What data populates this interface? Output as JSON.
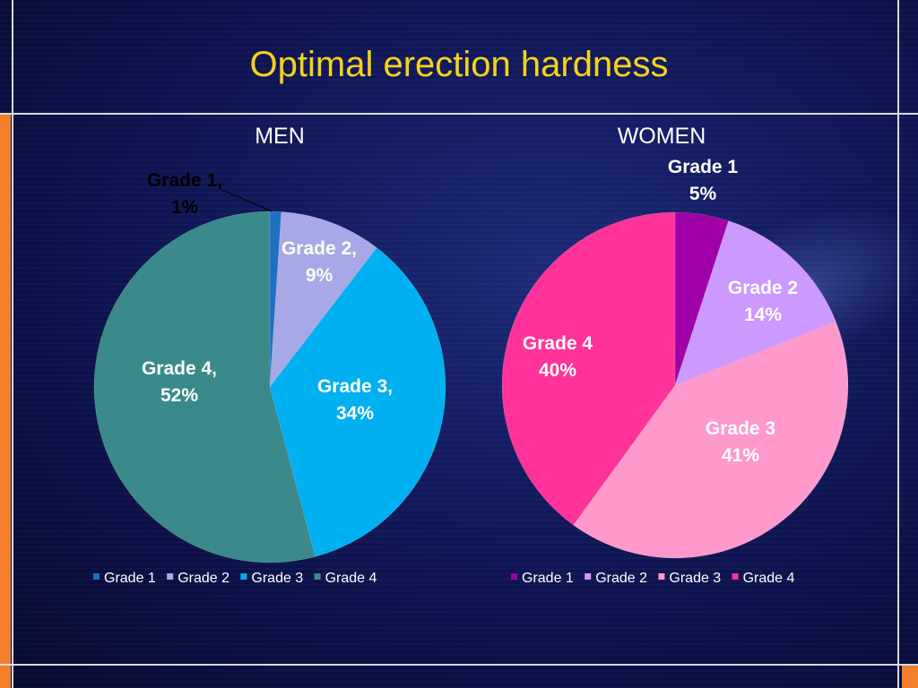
{
  "slide": {
    "title": "Optimal erection hardness"
  },
  "chart_data": [
    {
      "type": "pie",
      "title": "MEN",
      "categories": [
        "Grade 1",
        "Grade 2",
        "Grade 3",
        "Grade 4"
      ],
      "values": [
        1,
        9,
        34,
        52
      ],
      "data_labels": [
        "Grade 1,\n1%",
        "Grade 2,\n9%",
        "Grade 3,\n34%",
        "Grade 4,\n52%"
      ],
      "colors": [
        "#1f6fc2",
        "#a7a9e6",
        "#00b0f0",
        "#3a8a8c"
      ],
      "legend": "bottom"
    },
    {
      "type": "pie",
      "title": "WOMEN",
      "categories": [
        "Grade 1",
        "Grade 2",
        "Grade 3",
        "Grade 4"
      ],
      "values": [
        5,
        14,
        41,
        40
      ],
      "data_labels": [
        "Grade 1\n5%",
        "Grade 2\n14%",
        "Grade 3\n41%",
        "Grade 4\n40%"
      ],
      "colors": [
        "#a000a8",
        "#cc99ff",
        "#ff99cc",
        "#ff3399"
      ],
      "legend": "bottom"
    }
  ]
}
